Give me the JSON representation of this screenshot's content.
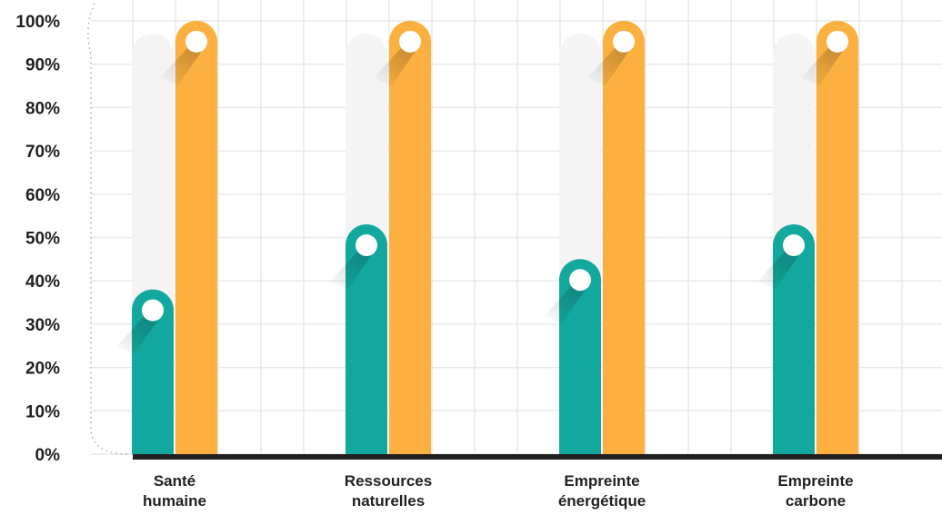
{
  "chart_data": {
    "type": "bar",
    "title": "",
    "xlabel": "",
    "ylabel": "",
    "ylim": [
      0,
      100
    ],
    "y_ticks": [
      "0%",
      "10%",
      "20%",
      "30%",
      "40%",
      "50%",
      "60%",
      "70%",
      "80%",
      "90%",
      "100%"
    ],
    "categories": [
      [
        "Santé",
        "humaine"
      ],
      [
        "Ressources",
        "naturelles"
      ],
      [
        "Empreinte",
        "énergétique"
      ],
      [
        "Empreinte",
        "carbone"
      ]
    ],
    "series": [
      {
        "values": [
          33,
          48,
          40,
          48
        ],
        "color": "#13a89e"
      },
      {
        "values": [
          95,
          95,
          95,
          95
        ],
        "color": "#fbb040"
      }
    ],
    "grid": true,
    "legend": "none",
    "background_track_color": "#f4f4f4",
    "grid_color": "#e9e9e9",
    "baseline_color": "#231f20"
  }
}
